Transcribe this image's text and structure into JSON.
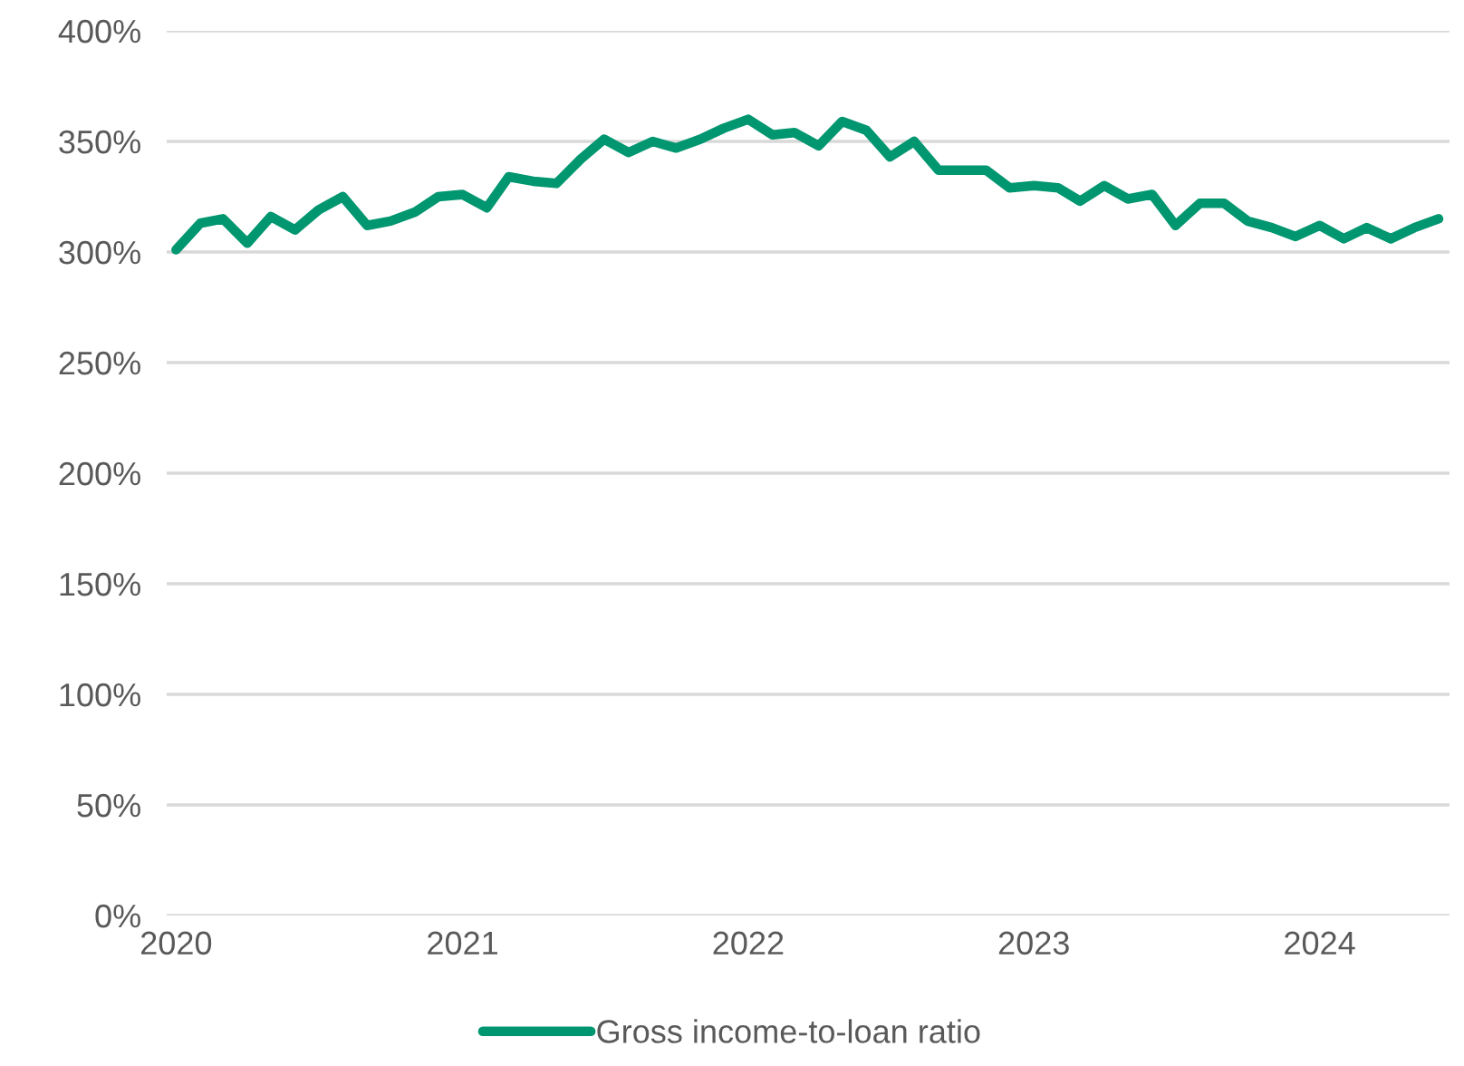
{
  "chart_data": {
    "type": "line",
    "x": [
      "2020-01",
      "2020-02",
      "2020-03",
      "2020-04",
      "2020-05",
      "2020-06",
      "2020-07",
      "2020-08",
      "2020-09",
      "2020-10",
      "2020-11",
      "2020-12",
      "2021-01",
      "2021-02",
      "2021-03",
      "2021-04",
      "2021-05",
      "2021-06",
      "2021-07",
      "2021-08",
      "2021-09",
      "2021-10",
      "2021-11",
      "2021-12",
      "2022-01",
      "2022-02",
      "2022-03",
      "2022-04",
      "2022-05",
      "2022-06",
      "2022-07",
      "2022-08",
      "2022-09",
      "2022-10",
      "2022-11",
      "2022-12",
      "2023-01",
      "2023-02",
      "2023-03",
      "2023-04",
      "2023-05",
      "2023-06",
      "2023-07",
      "2023-08",
      "2023-09",
      "2023-10",
      "2023-11",
      "2023-12",
      "2024-01",
      "2024-02",
      "2024-03",
      "2024-04",
      "2024-05",
      "2024-06"
    ],
    "series": [
      {
        "name": "Gross income-to-loan ratio",
        "color": "#00966f",
        "values": [
          301,
          313,
          315,
          304,
          316,
          310,
          319,
          325,
          312,
          314,
          318,
          325,
          326,
          320,
          334,
          332,
          331,
          342,
          351,
          345,
          350,
          347,
          351,
          356,
          360,
          353,
          354,
          348,
          359,
          355,
          343,
          350,
          337,
          337,
          337,
          329,
          330,
          329,
          323,
          330,
          324,
          326,
          312,
          322,
          322,
          314,
          311,
          307,
          312,
          306,
          311,
          306,
          311,
          315
        ]
      }
    ],
    "xlim": [
      "2019-12-20",
      "2024-06-15"
    ],
    "xticks": [
      "2020",
      "2021",
      "2022",
      "2023",
      "2024"
    ],
    "ylim": [
      0,
      400
    ],
    "yticks": [
      {
        "value": 0,
        "label": "0%"
      },
      {
        "value": 50,
        "label": "50%"
      },
      {
        "value": 100,
        "label": "100%"
      },
      {
        "value": 150,
        "label": "150%"
      },
      {
        "value": 200,
        "label": "200%"
      },
      {
        "value": 250,
        "label": "250%"
      },
      {
        "value": 300,
        "label": "300%"
      },
      {
        "value": 350,
        "label": "350%"
      },
      {
        "value": 400,
        "label": "400%"
      }
    ],
    "grid": "y",
    "legend": "bottom",
    "marker": "none",
    "line_style": "solid"
  }
}
